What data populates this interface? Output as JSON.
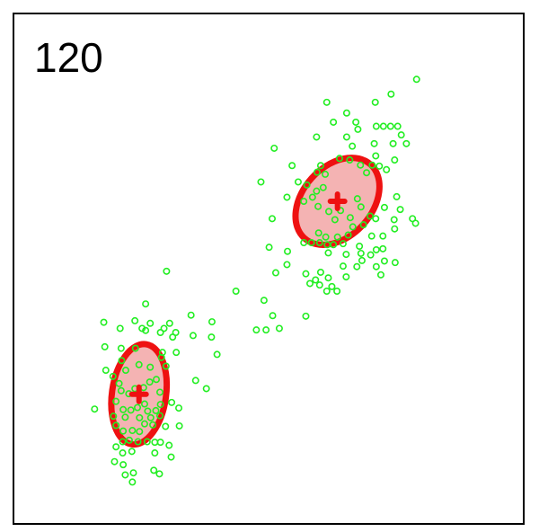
{
  "chart_data": {
    "type": "scatter",
    "label": "120",
    "xlim": [
      0,
      1
    ],
    "ylim": [
      0,
      1
    ],
    "grid": false,
    "colors": {
      "points": "#22ee22",
      "ellipse_stroke": "#ee1111",
      "ellipse_fill": "#f4b3b3",
      "frame": "#000000"
    },
    "clusters": [
      {
        "name": "",
        "center": [
          0.246,
          0.254
        ],
        "ellipse": {
          "rx": 0.053,
          "ry": 0.099,
          "angle": 8
        }
      },
      {
        "name": "",
        "center": [
          0.635,
          0.632
        ],
        "ellipse": {
          "rx": 0.068,
          "ry": 0.097,
          "angle": 42
        }
      }
    ],
    "points": [
      [
        0.79,
        0.871
      ],
      [
        0.74,
        0.842
      ],
      [
        0.709,
        0.826
      ],
      [
        0.614,
        0.826
      ],
      [
        0.653,
        0.805
      ],
      [
        0.671,
        0.787
      ],
      [
        0.675,
        0.773
      ],
      [
        0.725,
        0.779
      ],
      [
        0.739,
        0.779
      ],
      [
        0.753,
        0.779
      ],
      [
        0.711,
        0.779
      ],
      [
        0.627,
        0.787
      ],
      [
        0.594,
        0.758
      ],
      [
        0.653,
        0.758
      ],
      [
        0.76,
        0.762
      ],
      [
        0.744,
        0.745
      ],
      [
        0.77,
        0.745
      ],
      [
        0.707,
        0.745
      ],
      [
        0.664,
        0.74
      ],
      [
        0.71,
        0.721
      ],
      [
        0.639,
        0.716
      ],
      [
        0.659,
        0.713
      ],
      [
        0.511,
        0.736
      ],
      [
        0.747,
        0.713
      ],
      [
        0.546,
        0.702
      ],
      [
        0.602,
        0.702
      ],
      [
        0.595,
        0.689
      ],
      [
        0.611,
        0.685
      ],
      [
        0.68,
        0.703
      ],
      [
        0.692,
        0.688
      ],
      [
        0.703,
        0.703
      ],
      [
        0.717,
        0.701
      ],
      [
        0.731,
        0.694
      ],
      [
        0.485,
        0.67
      ],
      [
        0.558,
        0.67
      ],
      [
        0.575,
        0.664
      ],
      [
        0.607,
        0.659
      ],
      [
        0.594,
        0.652
      ],
      [
        0.586,
        0.64
      ],
      [
        0.536,
        0.64
      ],
      [
        0.569,
        0.632
      ],
      [
        0.597,
        0.622
      ],
      [
        0.618,
        0.612
      ],
      [
        0.63,
        0.596
      ],
      [
        0.641,
        0.614
      ],
      [
        0.674,
        0.637
      ],
      [
        0.681,
        0.621
      ],
      [
        0.66,
        0.6
      ],
      [
        0.699,
        0.603
      ],
      [
        0.71,
        0.598
      ],
      [
        0.686,
        0.586
      ],
      [
        0.665,
        0.582
      ],
      [
        0.656,
        0.566
      ],
      [
        0.635,
        0.562
      ],
      [
        0.702,
        0.564
      ],
      [
        0.727,
        0.62
      ],
      [
        0.751,
        0.641
      ],
      [
        0.758,
        0.616
      ],
      [
        0.746,
        0.596
      ],
      [
        0.782,
        0.598
      ],
      [
        0.788,
        0.589
      ],
      [
        0.747,
        0.578
      ],
      [
        0.724,
        0.564
      ],
      [
        0.507,
        0.598
      ],
      [
        0.612,
        0.562
      ],
      [
        0.598,
        0.57
      ],
      [
        0.569,
        0.551
      ],
      [
        0.584,
        0.551
      ],
      [
        0.6,
        0.551
      ],
      [
        0.615,
        0.547
      ],
      [
        0.627,
        0.547
      ],
      [
        0.646,
        0.549
      ],
      [
        0.678,
        0.544
      ],
      [
        0.711,
        0.537
      ],
      [
        0.724,
        0.539
      ],
      [
        0.501,
        0.542
      ],
      [
        0.537,
        0.534
      ],
      [
        0.617,
        0.531
      ],
      [
        0.652,
        0.528
      ],
      [
        0.681,
        0.53
      ],
      [
        0.7,
        0.527
      ],
      [
        0.536,
        0.508
      ],
      [
        0.514,
        0.492
      ],
      [
        0.573,
        0.49
      ],
      [
        0.581,
        0.471
      ],
      [
        0.602,
        0.493
      ],
      [
        0.592,
        0.478
      ],
      [
        0.617,
        0.482
      ],
      [
        0.6,
        0.468
      ],
      [
        0.614,
        0.456
      ],
      [
        0.624,
        0.465
      ],
      [
        0.634,
        0.456
      ],
      [
        0.646,
        0.505
      ],
      [
        0.673,
        0.504
      ],
      [
        0.652,
        0.484
      ],
      [
        0.683,
        0.516
      ],
      [
        0.711,
        0.504
      ],
      [
        0.72,
        0.488
      ],
      [
        0.727,
        0.515
      ],
      [
        0.748,
        0.512
      ],
      [
        0.3,
        0.495
      ],
      [
        0.436,
        0.456
      ],
      [
        0.491,
        0.438
      ],
      [
        0.508,
        0.408
      ],
      [
        0.495,
        0.38
      ],
      [
        0.476,
        0.38
      ],
      [
        0.521,
        0.383
      ],
      [
        0.573,
        0.407
      ],
      [
        0.259,
        0.431
      ],
      [
        0.268,
        0.393
      ],
      [
        0.259,
        0.379
      ],
      [
        0.348,
        0.409
      ],
      [
        0.389,
        0.396
      ],
      [
        0.388,
        0.366
      ],
      [
        0.352,
        0.369
      ],
      [
        0.318,
        0.375
      ],
      [
        0.288,
        0.375
      ],
      [
        0.179,
        0.347
      ],
      [
        0.177,
        0.395
      ],
      [
        0.209,
        0.383
      ],
      [
        0.238,
        0.398
      ],
      [
        0.252,
        0.383
      ],
      [
        0.295,
        0.383
      ],
      [
        0.312,
        0.366
      ],
      [
        0.306,
        0.393
      ],
      [
        0.399,
        0.332
      ],
      [
        0.292,
        0.336
      ],
      [
        0.319,
        0.336
      ],
      [
        0.239,
        0.344
      ],
      [
        0.211,
        0.344
      ],
      [
        0.181,
        0.301
      ],
      [
        0.212,
        0.32
      ],
      [
        0.22,
        0.301
      ],
      [
        0.195,
        0.289
      ],
      [
        0.246,
        0.312
      ],
      [
        0.268,
        0.307
      ],
      [
        0.29,
        0.326
      ],
      [
        0.299,
        0.309
      ],
      [
        0.207,
        0.275
      ],
      [
        0.211,
        0.261
      ],
      [
        0.226,
        0.255
      ],
      [
        0.238,
        0.265
      ],
      [
        0.255,
        0.267
      ],
      [
        0.267,
        0.278
      ],
      [
        0.28,
        0.283
      ],
      [
        0.287,
        0.258
      ],
      [
        0.288,
        0.234
      ],
      [
        0.201,
        0.24
      ],
      [
        0.215,
        0.224
      ],
      [
        0.23,
        0.223
      ],
      [
        0.243,
        0.228
      ],
      [
        0.257,
        0.235
      ],
      [
        0.263,
        0.221
      ],
      [
        0.279,
        0.222
      ],
      [
        0.219,
        0.209
      ],
      [
        0.247,
        0.208
      ],
      [
        0.269,
        0.208
      ],
      [
        0.287,
        0.212
      ],
      [
        0.196,
        0.211
      ],
      [
        0.159,
        0.225
      ],
      [
        0.201,
        0.193
      ],
      [
        0.215,
        0.182
      ],
      [
        0.233,
        0.183
      ],
      [
        0.247,
        0.181
      ],
      [
        0.257,
        0.196
      ],
      [
        0.273,
        0.194
      ],
      [
        0.298,
        0.191
      ],
      [
        0.31,
        0.238
      ],
      [
        0.324,
        0.227
      ],
      [
        0.357,
        0.281
      ],
      [
        0.378,
        0.265
      ],
      [
        0.325,
        0.192
      ],
      [
        0.214,
        0.161
      ],
      [
        0.227,
        0.164
      ],
      [
        0.244,
        0.161
      ],
      [
        0.262,
        0.161
      ],
      [
        0.277,
        0.16
      ],
      [
        0.288,
        0.16
      ],
      [
        0.201,
        0.151
      ],
      [
        0.214,
        0.139
      ],
      [
        0.232,
        0.142
      ],
      [
        0.277,
        0.139
      ],
      [
        0.305,
        0.154
      ],
      [
        0.309,
        0.131
      ],
      [
        0.198,
        0.122
      ],
      [
        0.215,
        0.116
      ],
      [
        0.219,
        0.096
      ],
      [
        0.235,
        0.1
      ],
      [
        0.275,
        0.105
      ],
      [
        0.286,
        0.098
      ],
      [
        0.233,
        0.082
      ]
    ]
  }
}
